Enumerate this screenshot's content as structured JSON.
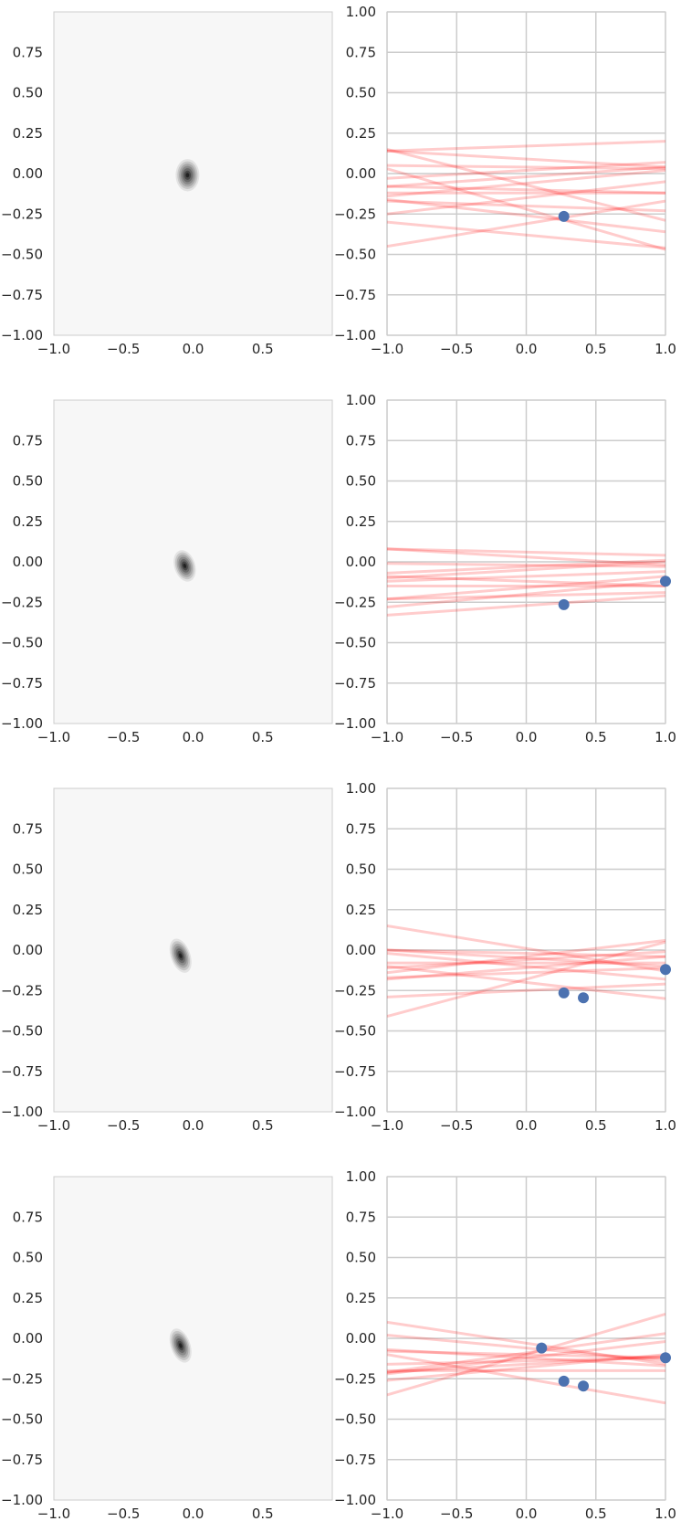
{
  "chart_data": [
    {
      "type": "contour",
      "row": 1,
      "xlim": [
        -1.0,
        1.0
      ],
      "ylim": [
        -1.0,
        1.0
      ],
      "xticks": [
        -1.0,
        -0.5,
        0.0,
        0.5
      ],
      "yticks": [
        -1.0,
        -0.75,
        -0.5,
        -0.25,
        0.0,
        0.25,
        0.5,
        0.75
      ],
      "grid": false,
      "background": "#f7f7f7",
      "density": {
        "center": [
          -0.04,
          -0.01
        ],
        "sx": 0.085,
        "sy": 0.1,
        "angle_deg": 0,
        "levels": 7
      }
    },
    {
      "type": "line",
      "row": 1,
      "xlim": [
        -1.0,
        1.0
      ],
      "ylim": [
        -1.0,
        1.0
      ],
      "xticks": [
        -1.0,
        -0.5,
        0.0,
        0.5,
        1.0
      ],
      "yticks": [
        -1.0,
        -0.75,
        -0.5,
        -0.25,
        0.0,
        0.25,
        0.5,
        0.75,
        1.0
      ],
      "grid": true,
      "line_color": "#ff0000",
      "point_color": "#4c72b0",
      "lines": [
        [
          0.14,
          -0.31
        ],
        [
          0.1,
          -0.15
        ],
        [
          0.06,
          -0.02
        ],
        [
          0.03,
          0.17
        ],
        [
          0.0,
          -0.12
        ],
        [
          -0.01,
          0.04
        ],
        [
          -0.03,
          -0.2
        ],
        [
          -0.05,
          0.09
        ],
        [
          -0.08,
          -0.38
        ],
        [
          -0.22,
          -0.07
        ],
        [
          -0.25,
          -0.22
        ],
        [
          -0.1,
          -0.26
        ],
        [
          0.05,
          0.02
        ],
        [
          -0.02,
          -0.1
        ],
        [
          0.08,
          -0.06
        ]
      ],
      "points": [
        [
          0.27,
          -0.265
        ]
      ]
    },
    {
      "type": "contour",
      "row": 2,
      "xlim": [
        -1.0,
        1.0
      ],
      "ylim": [
        -1.0,
        1.0
      ],
      "xticks": [
        -1.0,
        -0.5,
        0.0,
        0.5
      ],
      "yticks": [
        -1.0,
        -0.75,
        -0.5,
        -0.25,
        0.0,
        0.25,
        0.5,
        0.75
      ],
      "grid": false,
      "background": "#f7f7f7",
      "density": {
        "center": [
          -0.06,
          -0.025
        ],
        "sx": 0.075,
        "sy": 0.1,
        "angle_deg": -18,
        "levels": 7
      }
    },
    {
      "type": "line",
      "row": 2,
      "xlim": [
        -1.0,
        1.0
      ],
      "ylim": [
        -1.0,
        1.0
      ],
      "xticks": [
        -1.0,
        -0.5,
        0.0,
        0.5,
        1.0
      ],
      "yticks": [
        -1.0,
        -0.75,
        -0.5,
        -0.25,
        0.0,
        0.25,
        0.5,
        0.75,
        1.0
      ],
      "grid": true,
      "line_color": "#ff0000",
      "point_color": "#4c72b0",
      "lines": [
        [
          0.08,
          -0.2
        ],
        [
          0.06,
          -0.27
        ],
        [
          0.05,
          -0.05
        ],
        [
          -0.01,
          -0.02
        ],
        [
          0.07,
          -0.16
        ],
        [
          0.03,
          -0.09
        ],
        [
          0.02,
          -0.21
        ],
        [
          -0.02,
          0.06
        ],
        [
          -0.03,
          -0.12
        ],
        [
          0.0,
          -0.15
        ],
        [
          -0.05,
          0.03
        ],
        [
          0.04,
          -0.03
        ]
      ],
      "points": [
        [
          0.27,
          -0.265
        ],
        [
          1.0,
          -0.12
        ]
      ]
    },
    {
      "type": "contour",
      "row": 3,
      "xlim": [
        -1.0,
        1.0
      ],
      "ylim": [
        -1.0,
        1.0
      ],
      "xticks": [
        -1.0,
        -0.5,
        0.0,
        0.5
      ],
      "yticks": [
        -1.0,
        -0.75,
        -0.5,
        -0.25,
        0.0,
        0.25,
        0.5,
        0.75
      ],
      "grid": false,
      "background": "#f7f7f7",
      "density": {
        "center": [
          -0.09,
          -0.035
        ],
        "sx": 0.07,
        "sy": 0.11,
        "angle_deg": -20,
        "levels": 7
      }
    },
    {
      "type": "line",
      "row": 3,
      "xlim": [
        -1.0,
        1.0
      ],
      "ylim": [
        -1.0,
        1.0
      ],
      "xticks": [
        -1.0,
        -0.5,
        0.0,
        0.5,
        1.0
      ],
      "yticks": [
        -1.0,
        -0.75,
        -0.5,
        -0.25,
        0.0,
        0.25,
        0.5,
        0.75,
        1.0
      ],
      "grid": true,
      "line_color": "#ff0000",
      "point_color": "#4c72b0",
      "lines": [
        [
          -0.14,
          0.01
        ],
        [
          0.23,
          -0.18
        ],
        [
          0.1,
          -0.04
        ],
        [
          0.05,
          -0.06
        ],
        [
          -0.05,
          -0.05
        ],
        [
          -0.08,
          -0.1
        ],
        [
          0.03,
          -0.14
        ],
        [
          -0.02,
          -0.02
        ],
        [
          0.07,
          -0.11
        ],
        [
          -0.1,
          -0.2
        ],
        [
          0.0,
          -0.08
        ],
        [
          0.04,
          -0.25
        ]
      ],
      "points": [
        [
          0.27,
          -0.265
        ],
        [
          0.41,
          -0.295
        ],
        [
          1.0,
          -0.12
        ]
      ]
    },
    {
      "type": "contour",
      "row": 4,
      "xlim": [
        -1.0,
        1.0
      ],
      "ylim": [
        -1.0,
        1.0
      ],
      "xticks": [
        -1.0,
        -0.5,
        0.0,
        0.5
      ],
      "yticks": [
        -1.0,
        -0.75,
        -0.5,
        -0.25,
        0.0,
        0.25,
        0.5,
        0.75
      ],
      "grid": false,
      "background": "#f7f7f7",
      "density": {
        "center": [
          -0.09,
          -0.045
        ],
        "sx": 0.07,
        "sy": 0.11,
        "angle_deg": -20,
        "levels": 7
      }
    },
    {
      "type": "line",
      "row": 4,
      "xlim": [
        -1.0,
        1.0
      ],
      "ylim": [
        -1.0,
        1.0
      ],
      "xticks": [
        -1.0,
        -0.5,
        0.0,
        0.5,
        1.0
      ],
      "yticks": [
        -1.0,
        -0.75,
        -0.5,
        -0.25,
        0.0,
        0.25,
        0.5,
        0.75,
        1.0
      ],
      "grid": true,
      "line_color": "#ff0000",
      "point_color": "#4c72b0",
      "lines": [
        [
          -0.13,
          -0.03
        ],
        [
          0.25,
          -0.1
        ],
        [
          -0.15,
          -0.25
        ],
        [
          0.1,
          -0.12
        ],
        [
          0.02,
          -0.14
        ],
        [
          -0.05,
          -0.12
        ],
        [
          0.05,
          -0.16
        ],
        [
          -0.02,
          -0.1
        ],
        [
          0.08,
          -0.18
        ],
        [
          0.0,
          -0.2
        ],
        [
          -0.08,
          -0.06
        ],
        [
          0.12,
          -0.09
        ]
      ],
      "points": [
        [
          0.11,
          -0.06
        ],
        [
          0.27,
          -0.265
        ],
        [
          0.41,
          -0.295
        ],
        [
          1.0,
          -0.12
        ]
      ]
    }
  ]
}
